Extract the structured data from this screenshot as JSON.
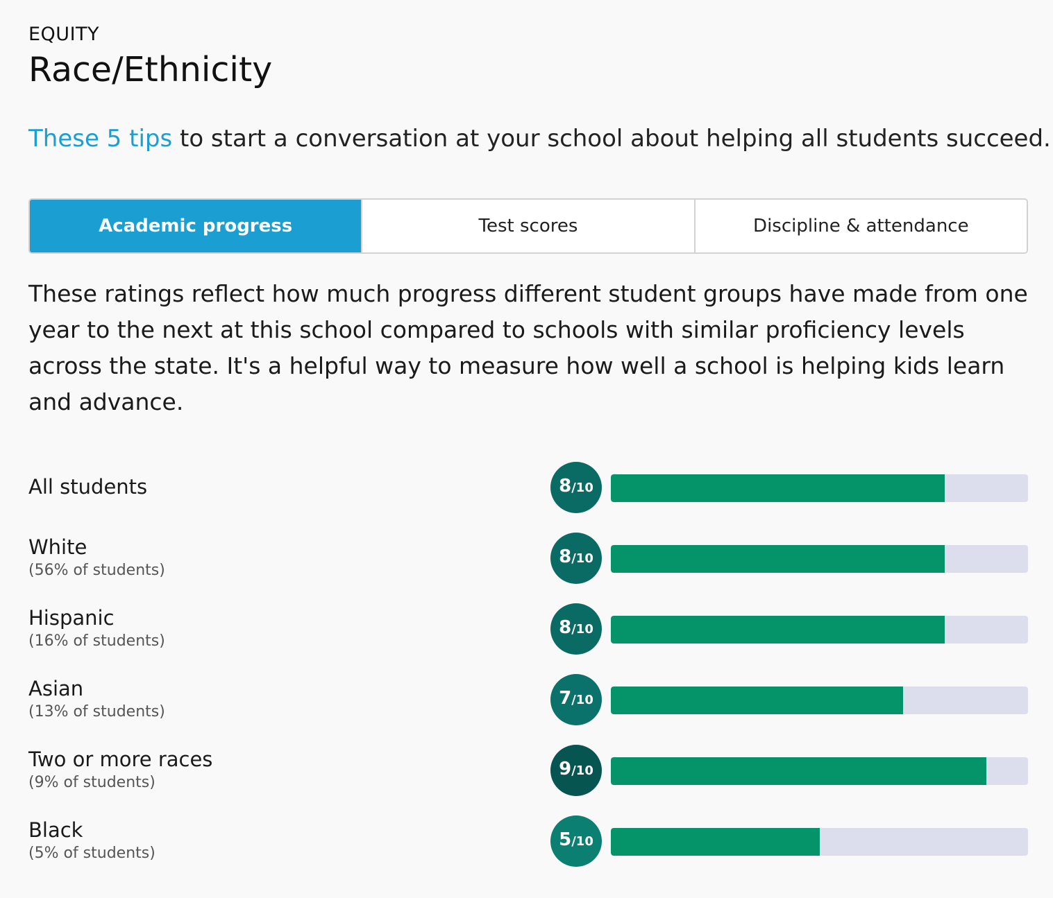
{
  "header": {
    "eyebrow": "EQUITY",
    "title": "Race/Ethnicity"
  },
  "tips": {
    "link_text": "These 5 tips",
    "rest_text": " to start a conversation at your school about helping all students succeed."
  },
  "tabs": [
    {
      "label": "Academic progress",
      "active": true
    },
    {
      "label": "Test scores",
      "active": false
    },
    {
      "label": "Discipline & attendance",
      "active": false
    }
  ],
  "description": "These ratings reflect how much progress different student groups have made from one year to the next at this school compared to schools with similar proficiency levels across the state. It's a helpful way to measure how well a school is helping kids learn and advance.",
  "colors": {
    "accent": "#1b9ed1",
    "bar_fill": "#05936a",
    "bar_track": "#dcdded",
    "badge_5": "#0a7f72",
    "badge_7": "#0a726a",
    "badge_8": "#0a6b64",
    "badge_9": "#065550"
  },
  "groups": [
    {
      "name": "All students",
      "pct": "",
      "rating": 8,
      "denom": "/10"
    },
    {
      "name": "White",
      "pct": "(56% of students)",
      "rating": 8,
      "denom": "/10"
    },
    {
      "name": "Hispanic",
      "pct": "(16% of students)",
      "rating": 8,
      "denom": "/10"
    },
    {
      "name": "Asian",
      "pct": "(13% of students)",
      "rating": 7,
      "denom": "/10"
    },
    {
      "name": "Two or more races",
      "pct": "(9% of students)",
      "rating": 9,
      "denom": "/10"
    },
    {
      "name": "Black",
      "pct": "(5% of students)",
      "rating": 5,
      "denom": "/10"
    }
  ]
}
